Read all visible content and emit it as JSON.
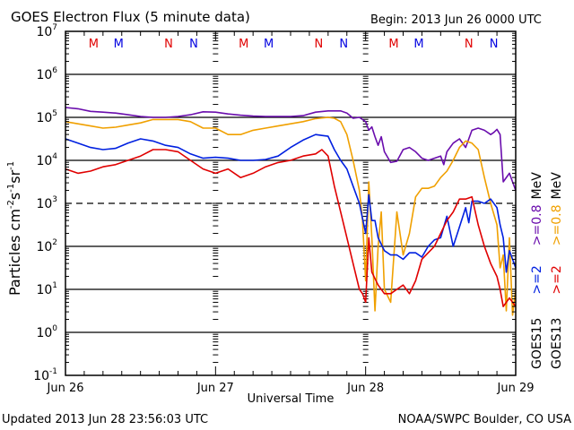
{
  "chart_data": {
    "type": "line",
    "title": "GOES Electron Flux (5 minute data)",
    "begin_label": "Begin: 2013 Jun 26 0000 UTC",
    "xlabel": "Universal Time",
    "ylabel_parts": {
      "base": "Particles cm",
      "exp1": "-2",
      "s": "s",
      "exp2": "-1",
      "sr": "sr",
      "exp3": "-1"
    },
    "x_unit": "hours since 2013 Jun 26 0000 UTC",
    "xlim": [
      0,
      72
    ],
    "x_ticks": [
      {
        "hour": 0,
        "label": "Jun 26"
      },
      {
        "hour": 24,
        "label": "Jun 27"
      },
      {
        "hour": 48,
        "label": "Jun 28"
      },
      {
        "hour": 72,
        "label": "Jun 29"
      }
    ],
    "yscale": "log",
    "ylim_log10": [
      -1,
      7
    ],
    "y_ticks": [
      {
        "exp": 7,
        "base": "10",
        "sup": "7"
      },
      {
        "exp": 6,
        "base": "10",
        "sup": "6"
      },
      {
        "exp": 5,
        "base": "10",
        "sup": "5"
      },
      {
        "exp": 4,
        "base": "10",
        "sup": "4"
      },
      {
        "exp": 3,
        "base": "10",
        "sup": "3"
      },
      {
        "exp": 2,
        "base": "10",
        "sup": "2"
      },
      {
        "exp": 1,
        "base": "10",
        "sup": "1"
      },
      {
        "exp": 0,
        "base": "10",
        "sup": "0"
      },
      {
        "exp": -1,
        "base": "10",
        "sup": "-1"
      }
    ],
    "gridlines_solid_log10": [
      6,
      5,
      4,
      2,
      1,
      0
    ],
    "gridlines_dashed_log10": [
      3
    ],
    "markers": [
      {
        "hour": 4.5,
        "label": "M",
        "color": "#e00000"
      },
      {
        "hour": 8.5,
        "label": "M",
        "color": "#0000e0"
      },
      {
        "hour": 16.5,
        "label": "N",
        "color": "#e00000"
      },
      {
        "hour": 20.5,
        "label": "N",
        "color": "#0000e0"
      },
      {
        "hour": 28.5,
        "label": "M",
        "color": "#e00000"
      },
      {
        "hour": 32.5,
        "label": "M",
        "color": "#0000e0"
      },
      {
        "hour": 40.5,
        "label": "N",
        "color": "#e00000"
      },
      {
        "hour": 44.5,
        "label": "N",
        "color": "#0000e0"
      },
      {
        "hour": 52.5,
        "label": "M",
        "color": "#e00000"
      },
      {
        "hour": 56.5,
        "label": "M",
        "color": "#0000e0"
      },
      {
        "hour": 64.5,
        "label": "N",
        "color": "#e00000"
      },
      {
        "hour": 68.5,
        "label": "N",
        "color": "#0000e0"
      }
    ],
    "legend": {
      "placement": "right",
      "goes15": {
        "sat": "GOES15",
        "e2": ">=2",
        "e08": ">=0.8",
        "unit": "MeV"
      },
      "goes13": {
        "sat": "GOES13",
        "e2": ">=2",
        "e08": ">=0.8",
        "unit": "MeV"
      }
    },
    "series": [
      {
        "name": "GOES15 >=0.8 MeV",
        "color": "#6a0dad",
        "x": [
          0,
          2,
          4,
          6,
          8,
          10,
          12,
          14,
          16,
          18,
          20,
          22,
          24,
          26,
          28,
          30,
          32,
          34,
          36,
          38,
          40,
          42,
          44,
          45,
          46,
          47,
          48,
          48.5,
          49,
          49.5,
          50,
          50.5,
          51,
          52,
          53,
          54,
          55,
          56,
          57,
          58,
          59,
          60,
          60.5,
          61,
          62,
          63,
          64,
          65,
          66,
          67,
          68,
          68.5,
          69,
          69.5,
          70,
          71,
          72
        ],
        "y": [
          5.23,
          5.2,
          5.14,
          5.12,
          5.1,
          5.06,
          5.02,
          5.0,
          5.0,
          5.02,
          5.06,
          5.13,
          5.12,
          5.08,
          5.05,
          5.03,
          5.02,
          5.02,
          5.02,
          5.04,
          5.12,
          5.15,
          5.15,
          5.1,
          4.98,
          5.0,
          4.9,
          4.7,
          4.78,
          4.55,
          4.35,
          4.55,
          4.2,
          3.95,
          3.98,
          4.25,
          4.3,
          4.2,
          4.05,
          4.0,
          4.05,
          4.1,
          3.9,
          4.2,
          4.4,
          4.5,
          4.3,
          4.7,
          4.75,
          4.7,
          4.6,
          4.65,
          4.72,
          4.6,
          3.5,
          3.7,
          3.3
        ]
      },
      {
        "name": "GOES13 >=0.8 MeV",
        "color": "#f0a000",
        "x": [
          0,
          2,
          4,
          6,
          8,
          10,
          12,
          14,
          16,
          18,
          20,
          22,
          24,
          26,
          28,
          30,
          32,
          34,
          36,
          38,
          40,
          42,
          43,
          44,
          45,
          46,
          47,
          47.5,
          48,
          48.5,
          49,
          49.5,
          50,
          50.5,
          51,
          52,
          53,
          54,
          55,
          56,
          57,
          58,
          59,
          60,
          61,
          62,
          63,
          64,
          65,
          66,
          67,
          68,
          69,
          69.5,
          70,
          70.5,
          71,
          71.5,
          72
        ],
        "y": [
          4.9,
          4.85,
          4.8,
          4.75,
          4.77,
          4.82,
          4.87,
          4.95,
          4.95,
          4.95,
          4.9,
          4.75,
          4.75,
          4.6,
          4.6,
          4.7,
          4.75,
          4.8,
          4.85,
          4.9,
          4.97,
          5.0,
          4.98,
          4.9,
          4.6,
          4.0,
          3.3,
          2.6,
          1.2,
          3.5,
          2.2,
          0.5,
          2.0,
          2.8,
          1.0,
          0.7,
          2.8,
          1.8,
          2.3,
          3.15,
          3.35,
          3.35,
          3.4,
          3.6,
          3.75,
          4.0,
          4.3,
          4.45,
          4.4,
          4.25,
          3.6,
          3.0,
          2.5,
          1.5,
          1.8,
          0.5,
          2.2,
          0.4,
          1.0
        ]
      },
      {
        "name": "GOES15 >=2 MeV",
        "color": "#0020e0",
        "x": [
          0,
          2,
          4,
          6,
          8,
          10,
          12,
          14,
          16,
          18,
          20,
          22,
          24,
          26,
          28,
          30,
          32,
          34,
          36,
          38,
          40,
          41,
          42,
          43,
          44,
          45,
          46,
          47,
          48,
          48.5,
          49,
          49.5,
          50,
          51,
          52,
          53,
          54,
          55,
          56,
          57,
          58,
          59,
          60,
          61,
          62,
          63,
          64,
          64.5,
          65,
          66,
          67,
          68,
          69,
          69.5,
          70,
          70.5,
          71,
          72
        ],
        "y": [
          4.5,
          4.4,
          4.3,
          4.25,
          4.28,
          4.4,
          4.5,
          4.45,
          4.35,
          4.3,
          4.15,
          4.05,
          4.07,
          4.05,
          4.0,
          4.0,
          4.02,
          4.1,
          4.3,
          4.47,
          4.6,
          4.58,
          4.56,
          4.25,
          4.0,
          3.8,
          3.4,
          3.0,
          2.3,
          3.2,
          2.6,
          2.6,
          2.2,
          1.9,
          1.8,
          1.8,
          1.7,
          1.85,
          1.85,
          1.75,
          2.0,
          2.15,
          2.2,
          2.7,
          2.0,
          2.45,
          2.9,
          2.55,
          3.05,
          3.05,
          3.0,
          3.1,
          2.9,
          2.5,
          2.2,
          1.4,
          1.9,
          1.5
        ]
      },
      {
        "name": "GOES13 >=2 MeV",
        "color": "#e00000",
        "x": [
          0,
          2,
          4,
          6,
          8,
          10,
          12,
          14,
          16,
          18,
          20,
          22,
          24,
          26,
          28,
          30,
          32,
          34,
          36,
          38,
          40,
          41,
          42,
          43,
          44,
          45,
          46,
          47,
          47.5,
          48,
          48.5,
          49,
          50,
          51,
          52,
          53,
          54,
          55,
          56,
          57,
          58,
          59,
          60,
          61,
          62,
          63,
          64,
          65,
          66,
          67,
          68,
          69,
          69.5,
          70,
          71,
          72
        ],
        "y": [
          3.8,
          3.7,
          3.75,
          3.85,
          3.9,
          4.0,
          4.1,
          4.25,
          4.25,
          4.2,
          4.0,
          3.8,
          3.7,
          3.8,
          3.6,
          3.7,
          3.85,
          3.95,
          4.0,
          4.1,
          4.15,
          4.25,
          4.1,
          3.4,
          2.8,
          2.2,
          1.6,
          1.0,
          0.9,
          0.7,
          2.2,
          1.4,
          1.1,
          0.9,
          0.9,
          1.0,
          1.1,
          0.9,
          1.2,
          1.7,
          1.85,
          2.0,
          2.3,
          2.6,
          2.8,
          3.1,
          3.1,
          3.15,
          2.5,
          2.0,
          1.6,
          1.3,
          1.0,
          0.6,
          0.8,
          0.6
        ]
      }
    ]
  },
  "footer": {
    "updated": "Updated 2013 Jun 28 23:56:03 UTC",
    "credit": "NOAA/SWPC Boulder, CO USA"
  }
}
